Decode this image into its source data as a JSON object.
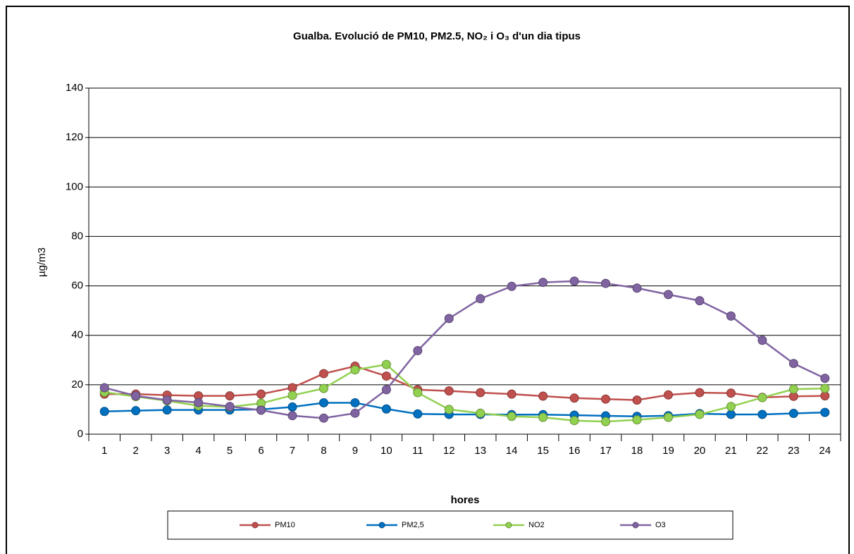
{
  "chart_data": {
    "type": "line",
    "title": "Gualba. Evolució de PM10, PM2.5, NO₂ i O₃ d'un dia tipus",
    "x_label": "hores",
    "y_label": "µg/m3",
    "categories": [
      "1",
      "2",
      "3",
      "4",
      "5",
      "6",
      "7",
      "8",
      "9",
      "10",
      "11",
      "12",
      "13",
      "14",
      "15",
      "16",
      "17",
      "18",
      "19",
      "20",
      "21",
      "22",
      "23",
      "24"
    ],
    "series": [
      {
        "name": "PM10",
        "color": "#c0504d",
        "values": [
          16.2,
          16.2,
          15.8,
          15.5,
          15.5,
          16.2,
          18.8,
          24.5,
          27.5,
          23.5,
          18,
          17.5,
          16.8,
          16.2,
          15.4,
          14.6,
          14.2,
          13.8,
          15.9,
          16.8,
          16.6,
          14.9,
          15.3,
          15.5
        ]
      },
      {
        "name": "PM2,5",
        "color": "#0070c0",
        "values": [
          9.2,
          9.5,
          9.8,
          9.8,
          9.8,
          10,
          11,
          12.7,
          12.7,
          10.2,
          8.2,
          8,
          8,
          7.9,
          7.9,
          7.7,
          7.4,
          7.2,
          7.5,
          8.3,
          8,
          8,
          8.4,
          8.8
        ]
      },
      {
        "name": "NO2",
        "color": "#92d050",
        "values": [
          17,
          15.2,
          13.5,
          11.5,
          11,
          12.5,
          15.7,
          18.5,
          26,
          28.2,
          16.8,
          10,
          8.5,
          7.2,
          6.8,
          5.5,
          5.1,
          5.8,
          6.8,
          8,
          11.2,
          14.8,
          18.2,
          18.5
        ]
      },
      {
        "name": "O3",
        "color": "#8064a2",
        "values": [
          18.8,
          15.5,
          13.8,
          12.8,
          11.2,
          9.7,
          7.5,
          6.5,
          8.5,
          18,
          33.8,
          46.8,
          54.8,
          59.8,
          61.4,
          61.9,
          61,
          59.1,
          56.5,
          54,
          47.8,
          38,
          28.6,
          22.6
        ]
      }
    ],
    "ylim": [
      0,
      140
    ],
    "yticks": [
      0,
      20,
      40,
      60,
      80,
      100,
      120,
      140
    ],
    "grid": true,
    "legend": "bottom"
  }
}
